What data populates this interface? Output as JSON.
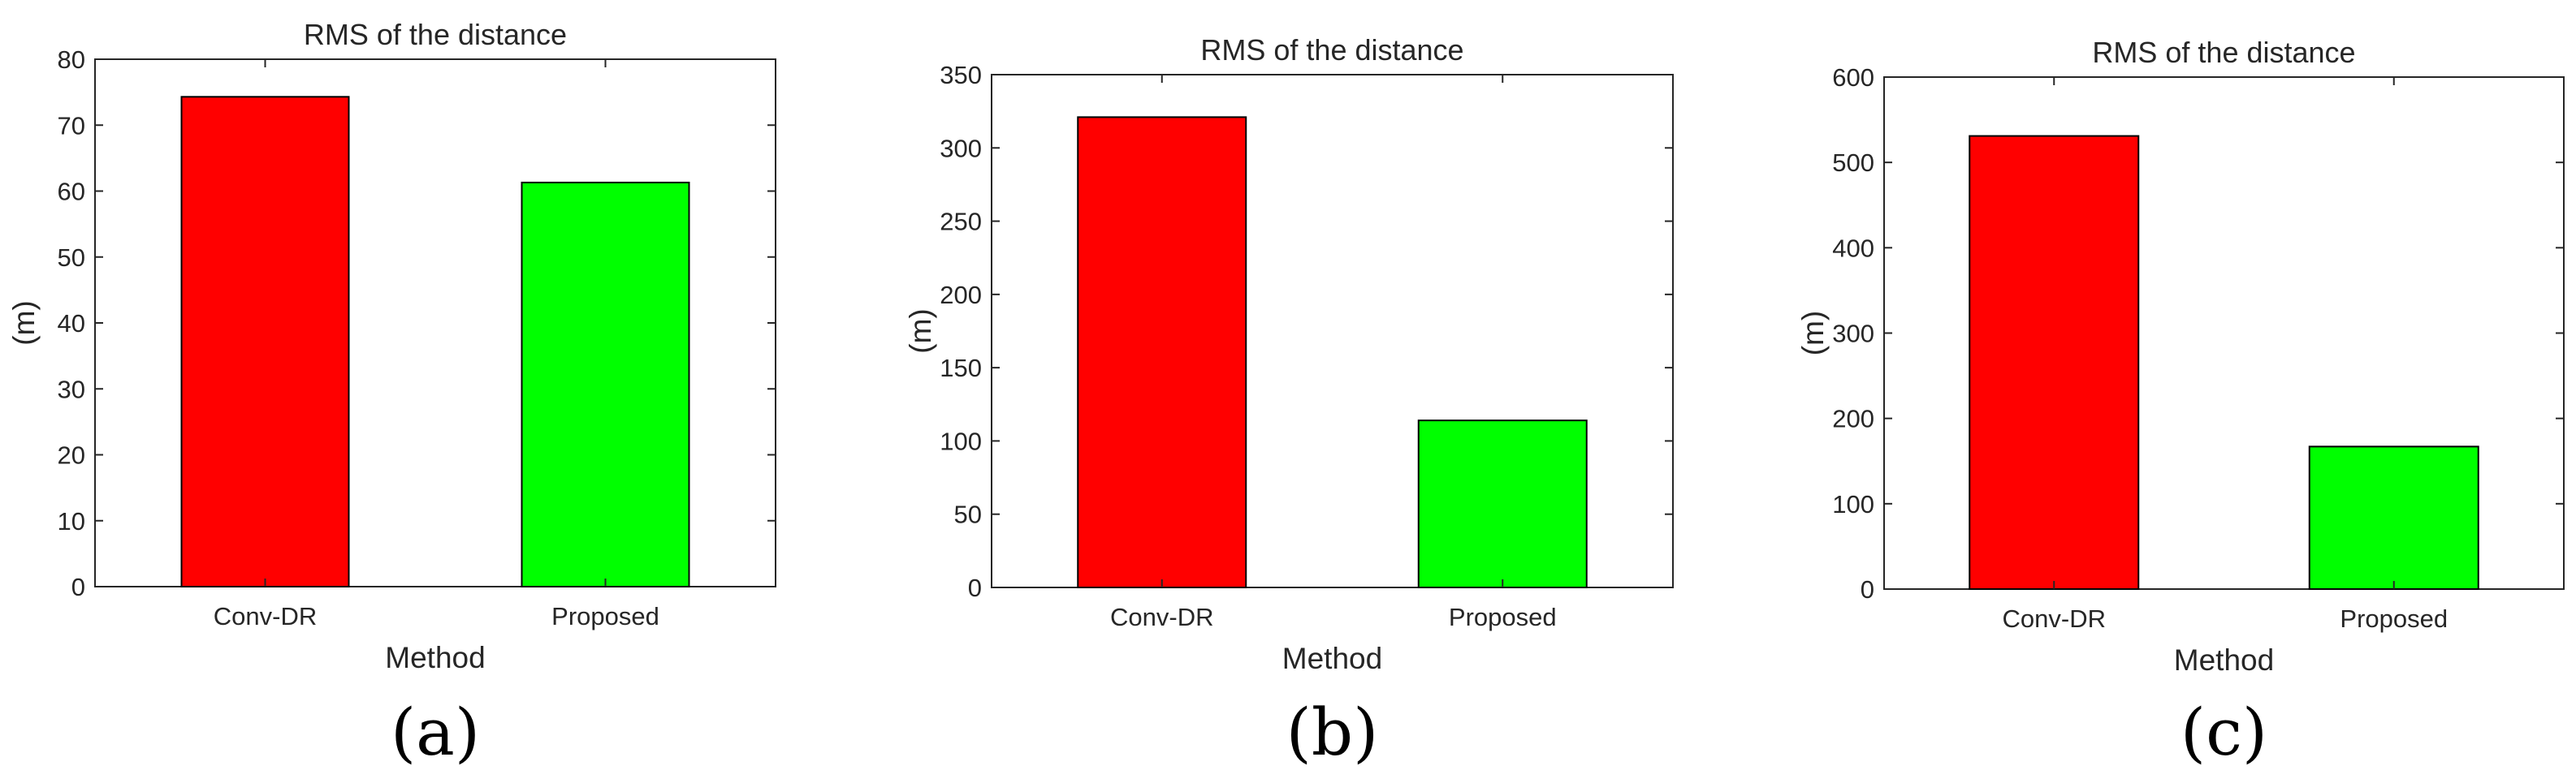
{
  "chart_data": [
    {
      "type": "bar",
      "title": "RMS of the distance",
      "xlabel": "Method",
      "ylabel": "(m)",
      "categories": [
        "Conv-DR",
        "Proposed"
      ],
      "values": [
        74.3,
        61.3
      ],
      "colors": [
        "#ff0000",
        "#00ff00"
      ],
      "ylim": [
        0,
        80
      ],
      "yticks": [
        0,
        10,
        20,
        30,
        40,
        50,
        60,
        70,
        80
      ],
      "grid": false,
      "panel_label": "(a)"
    },
    {
      "type": "bar",
      "title": "RMS of the distance",
      "xlabel": "Method",
      "ylabel": "(m)",
      "categories": [
        "Conv-DR",
        "Proposed"
      ],
      "values": [
        321,
        114
      ],
      "colors": [
        "#ff0000",
        "#00ff00"
      ],
      "ylim": [
        0,
        350
      ],
      "yticks": [
        0,
        50,
        100,
        150,
        200,
        250,
        300,
        350
      ],
      "grid": false,
      "panel_label": "(b)"
    },
    {
      "type": "bar",
      "title": "RMS of the distance",
      "xlabel": "Method",
      "ylabel": "(m)",
      "categories": [
        "Conv-DR",
        "Proposed"
      ],
      "values": [
        531,
        167
      ],
      "colors": [
        "#ff0000",
        "#00ff00"
      ],
      "ylim": [
        0,
        600
      ],
      "yticks": [
        0,
        100,
        200,
        300,
        400,
        500,
        600
      ],
      "grid": false,
      "panel_label": "(c)"
    }
  ]
}
